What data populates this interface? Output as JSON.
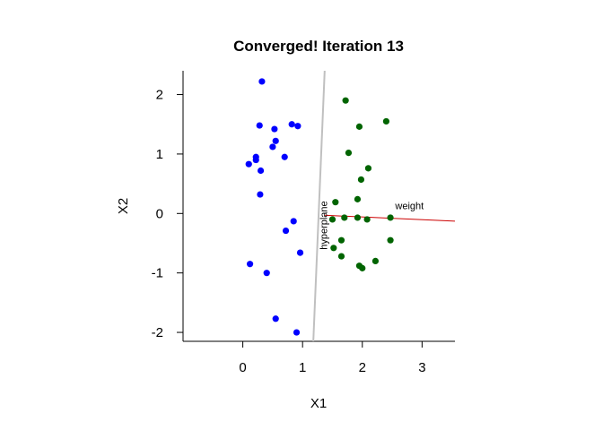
{
  "chart_data": {
    "type": "scatter",
    "title": "Converged! Iteration  13",
    "xlabel": "X1",
    "ylabel": "X2",
    "xlim": [
      -1,
      3.55
    ],
    "ylim": [
      -2.15,
      2.4
    ],
    "x_ticks": [
      0,
      1,
      2,
      3
    ],
    "y_ticks": [
      -2,
      -1,
      0,
      1,
      2
    ],
    "grid": false,
    "series": [
      {
        "color": "#0000ff",
        "points": [
          [
            0.32,
            2.22
          ],
          [
            0.28,
            1.48
          ],
          [
            0.53,
            1.42
          ],
          [
            0.82,
            1.5
          ],
          [
            0.92,
            1.47
          ],
          [
            0.55,
            1.22
          ],
          [
            0.5,
            1.12
          ],
          [
            0.7,
            0.95
          ],
          [
            0.22,
            0.95
          ],
          [
            0.22,
            0.9
          ],
          [
            0.1,
            0.83
          ],
          [
            0.3,
            0.72
          ],
          [
            0.29,
            0.32
          ],
          [
            0.85,
            -0.13
          ],
          [
            0.72,
            -0.29
          ],
          [
            0.96,
            -0.66
          ],
          [
            0.12,
            -0.85
          ],
          [
            0.4,
            -1.0
          ],
          [
            0.55,
            -1.77
          ],
          [
            0.9,
            -2.0
          ]
        ]
      },
      {
        "color": "#006400",
        "points": [
          [
            1.72,
            1.9
          ],
          [
            2.4,
            1.55
          ],
          [
            1.95,
            1.46
          ],
          [
            1.77,
            1.02
          ],
          [
            2.1,
            0.76
          ],
          [
            1.98,
            0.57
          ],
          [
            1.92,
            0.24
          ],
          [
            1.55,
            0.19
          ],
          [
            1.5,
            -0.1
          ],
          [
            1.7,
            -0.07
          ],
          [
            1.92,
            -0.07
          ],
          [
            2.08,
            -0.1
          ],
          [
            2.47,
            -0.07
          ],
          [
            2.47,
            -0.45
          ],
          [
            1.65,
            -0.45
          ],
          [
            1.52,
            -0.58
          ],
          [
            1.65,
            -0.72
          ],
          [
            2.22,
            -0.8
          ],
          [
            1.95,
            -0.88
          ],
          [
            2.0,
            -0.92
          ]
        ]
      }
    ],
    "lines": [
      {
        "label": "hyperplane",
        "color": "#c0c0c0",
        "from": [
          1.18,
          -2.15
        ],
        "to": [
          1.37,
          2.4
        ]
      },
      {
        "label": "weight",
        "color": "#cc0000",
        "from": [
          1.37,
          -0.03
        ],
        "to": [
          3.55,
          -0.13
        ]
      }
    ],
    "annotations": [
      {
        "text": "weight",
        "x": 2.55,
        "y": 0.07
      },
      {
        "text": "hyperplane",
        "x": 1.35,
        "y": -0.2
      }
    ]
  }
}
